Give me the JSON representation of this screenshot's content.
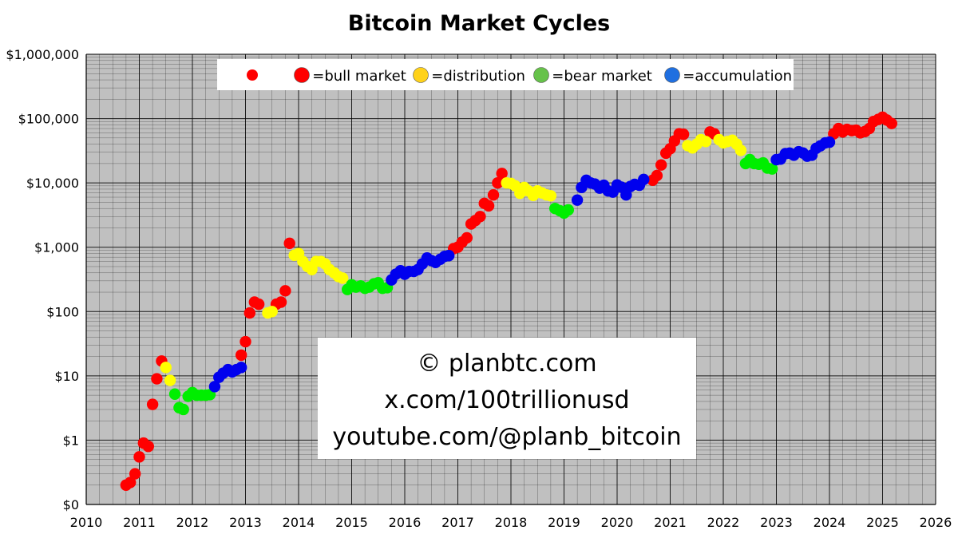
{
  "chart_data": {
    "type": "scatter",
    "title": "Bitcoin Market Cycles",
    "xlabel": "",
    "ylabel": "",
    "y_scale": "log",
    "xlim": [
      2010,
      2026
    ],
    "ylim": [
      0.1,
      1000000
    ],
    "x_ticks": [
      "2010",
      "2011",
      "2012",
      "2013",
      "2014",
      "2015",
      "2016",
      "2017",
      "2018",
      "2019",
      "2020",
      "2021",
      "2022",
      "2023",
      "2024",
      "2025",
      "2026"
    ],
    "y_ticks": [
      {
        "value": 0.1,
        "label": "$0"
      },
      {
        "value": 1,
        "label": "$1"
      },
      {
        "value": 10,
        "label": "$10"
      },
      {
        "value": 100,
        "label": "$100"
      },
      {
        "value": 1000,
        "label": "$1,000"
      },
      {
        "value": 10000,
        "label": "$10,000"
      },
      {
        "value": 100000,
        "label": "$100,000"
      },
      {
        "value": 1000000,
        "label": "$1,000,000"
      }
    ],
    "grid": true,
    "background_color": "#c0c0c0",
    "legend": {
      "placement": "top",
      "marker_color": "#ff0000",
      "entries": [
        {
          "label": "🔴=bull market"
        },
        {
          "label": "🟡=distribution"
        },
        {
          "label": "🟢=bear market"
        },
        {
          "label": "🔵=accumulation"
        }
      ]
    },
    "credits": [
      "© planbtc.com",
      "x.com/100trillionusd",
      "youtube.com/@planb_bitcoin"
    ],
    "colors": {
      "bull": "#ff0000",
      "distribution": "#ffff00",
      "bear": "#00ee00",
      "accumulation": "#0000ee"
    },
    "series": [
      {
        "phase": "bull",
        "points": [
          [
            2010.75,
            0.2
          ],
          [
            2010.83,
            0.22
          ],
          [
            2010.92,
            0.3
          ],
          [
            2011.0,
            0.55
          ],
          [
            2011.08,
            0.9
          ],
          [
            2011.17,
            0.8
          ],
          [
            2011.25,
            3.6
          ],
          [
            2011.33,
            9
          ],
          [
            2011.42,
            17
          ],
          [
            2012.92,
            21
          ],
          [
            2013.0,
            34
          ],
          [
            2013.08,
            95
          ],
          [
            2013.17,
            140
          ],
          [
            2013.25,
            130
          ],
          [
            2013.58,
            130
          ],
          [
            2013.67,
            140
          ],
          [
            2013.75,
            210
          ],
          [
            2013.83,
            1150
          ],
          [
            2016.92,
            950
          ],
          [
            2017.0,
            1000
          ],
          [
            2017.08,
            1200
          ],
          [
            2017.17,
            1400
          ],
          [
            2017.25,
            2300
          ],
          [
            2017.33,
            2600
          ],
          [
            2017.42,
            3000
          ],
          [
            2017.5,
            4800
          ],
          [
            2017.58,
            4400
          ],
          [
            2017.67,
            6500
          ],
          [
            2017.75,
            10000
          ],
          [
            2017.83,
            14000
          ],
          [
            2020.67,
            11000
          ],
          [
            2020.75,
            13000
          ],
          [
            2020.83,
            19000
          ],
          [
            2020.92,
            29000
          ],
          [
            2021.0,
            34000
          ],
          [
            2021.08,
            45000
          ],
          [
            2021.17,
            58000
          ],
          [
            2021.25,
            57000
          ],
          [
            2021.75,
            62000
          ],
          [
            2021.83,
            58000
          ],
          [
            2024.08,
            58000
          ],
          [
            2024.17,
            70000
          ],
          [
            2024.25,
            62000
          ],
          [
            2024.33,
            68000
          ],
          [
            2024.42,
            65000
          ],
          [
            2024.5,
            66000
          ],
          [
            2024.58,
            60000
          ],
          [
            2024.67,
            63000
          ],
          [
            2024.75,
            70000
          ],
          [
            2024.83,
            90000
          ],
          [
            2024.92,
            97000
          ],
          [
            2025.0,
            105000
          ],
          [
            2025.08,
            95000
          ],
          [
            2025.17,
            84000
          ]
        ]
      },
      {
        "phase": "distribution",
        "points": [
          [
            2011.5,
            13.5
          ],
          [
            2011.58,
            8.5
          ],
          [
            2013.42,
            95
          ],
          [
            2013.5,
            100
          ],
          [
            2013.92,
            750
          ],
          [
            2014.0,
            800
          ],
          [
            2014.08,
            600
          ],
          [
            2014.17,
            500
          ],
          [
            2014.25,
            450
          ],
          [
            2014.33,
            600
          ],
          [
            2014.42,
            600
          ],
          [
            2014.5,
            550
          ],
          [
            2014.58,
            450
          ],
          [
            2014.67,
            400
          ],
          [
            2014.75,
            350
          ],
          [
            2014.83,
            330
          ],
          [
            2017.92,
            10000
          ],
          [
            2018.0,
            9800
          ],
          [
            2018.08,
            9000
          ],
          [
            2018.17,
            6900
          ],
          [
            2018.25,
            8500
          ],
          [
            2018.33,
            7500
          ],
          [
            2018.42,
            6400
          ],
          [
            2018.5,
            7500
          ],
          [
            2018.58,
            7000
          ],
          [
            2018.67,
            6500
          ],
          [
            2018.75,
            6300
          ],
          [
            2021.33,
            38000
          ],
          [
            2021.42,
            35000
          ],
          [
            2021.5,
            40000
          ],
          [
            2021.58,
            47000
          ],
          [
            2021.67,
            44000
          ],
          [
            2021.92,
            47000
          ],
          [
            2022.0,
            42000
          ],
          [
            2022.08,
            44000
          ],
          [
            2022.17,
            46000
          ],
          [
            2022.25,
            40000
          ],
          [
            2022.33,
            32000
          ]
        ]
      },
      {
        "phase": "bear",
        "points": [
          [
            2011.67,
            5.2
          ],
          [
            2011.75,
            3.2
          ],
          [
            2011.83,
            3
          ],
          [
            2011.92,
            4.8
          ],
          [
            2012.0,
            5.5
          ],
          [
            2012.08,
            5
          ],
          [
            2012.17,
            5
          ],
          [
            2012.25,
            5
          ],
          [
            2012.33,
            5.1
          ],
          [
            2014.92,
            220
          ],
          [
            2015.0,
            260
          ],
          [
            2015.08,
            240
          ],
          [
            2015.17,
            250
          ],
          [
            2015.25,
            230
          ],
          [
            2015.33,
            240
          ],
          [
            2015.42,
            270
          ],
          [
            2015.5,
            280
          ],
          [
            2015.58,
            230
          ],
          [
            2015.67,
            235
          ],
          [
            2018.83,
            4000
          ],
          [
            2018.92,
            3700
          ],
          [
            2019.0,
            3400
          ],
          [
            2019.08,
            3800
          ],
          [
            2022.42,
            20000
          ],
          [
            2022.5,
            23000
          ],
          [
            2022.58,
            20000
          ],
          [
            2022.67,
            19500
          ],
          [
            2022.75,
            20500
          ],
          [
            2022.83,
            17000
          ],
          [
            2022.92,
            16500
          ]
        ]
      },
      {
        "phase": "accumulation",
        "points": [
          [
            2012.42,
            6.8
          ],
          [
            2012.5,
            9.5
          ],
          [
            2012.58,
            11
          ],
          [
            2012.67,
            12.5
          ],
          [
            2012.75,
            11.5
          ],
          [
            2012.83,
            12.5
          ],
          [
            2012.92,
            13.5
          ],
          [
            2015.75,
            310
          ],
          [
            2015.83,
            380
          ],
          [
            2015.92,
            430
          ],
          [
            2016.0,
            380
          ],
          [
            2016.08,
            420
          ],
          [
            2016.17,
            420
          ],
          [
            2016.25,
            450
          ],
          [
            2016.33,
            550
          ],
          [
            2016.42,
            680
          ],
          [
            2016.5,
            620
          ],
          [
            2016.58,
            580
          ],
          [
            2016.67,
            650
          ],
          [
            2016.75,
            720
          ],
          [
            2016.83,
            740
          ],
          [
            2019.25,
            5400
          ],
          [
            2019.33,
            8500
          ],
          [
            2019.42,
            11000
          ],
          [
            2019.5,
            10000
          ],
          [
            2019.58,
            9600
          ],
          [
            2019.67,
            8300
          ],
          [
            2019.75,
            9200
          ],
          [
            2019.83,
            7500
          ],
          [
            2019.92,
            7200
          ],
          [
            2020.0,
            9300
          ],
          [
            2020.08,
            8600
          ],
          [
            2020.17,
            6500
          ],
          [
            2020.25,
            8800
          ],
          [
            2020.33,
            9500
          ],
          [
            2020.42,
            9200
          ],
          [
            2020.5,
            11300
          ],
          [
            2023.0,
            23000
          ],
          [
            2023.08,
            23500
          ],
          [
            2023.17,
            28500
          ],
          [
            2023.25,
            29000
          ],
          [
            2023.33,
            27000
          ],
          [
            2023.42,
            30500
          ],
          [
            2023.5,
            29200
          ],
          [
            2023.58,
            26000
          ],
          [
            2023.67,
            27000
          ],
          [
            2023.75,
            34500
          ],
          [
            2023.83,
            37700
          ],
          [
            2023.92,
            42000
          ],
          [
            2024.0,
            43000
          ]
        ]
      }
    ]
  }
}
